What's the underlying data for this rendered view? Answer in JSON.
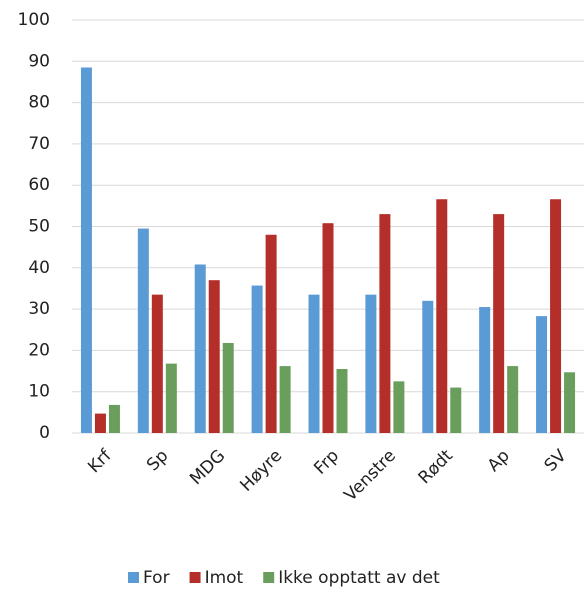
{
  "chart_data": {
    "type": "bar",
    "categories": [
      "Krf",
      "Sp",
      "MDG",
      "Høyre",
      "Frp",
      "Venstre",
      "Rødt",
      "Ap",
      "SV"
    ],
    "series": [
      {
        "name": "For",
        "color": "#5b9bd5",
        "values": [
          88.5,
          49.5,
          40.8,
          35.7,
          33.5,
          33.5,
          32,
          30.5,
          28.3
        ]
      },
      {
        "name": "Imot",
        "color": "#b52f2a",
        "values": [
          4.7,
          33.5,
          37,
          48,
          50.8,
          53,
          56.6,
          53,
          56.6
        ]
      },
      {
        "name": "Ikke opptatt av det",
        "color": "#6a9e5c",
        "values": [
          6.8,
          16.8,
          21.8,
          16.2,
          15.5,
          12.5,
          11,
          16.2,
          14.7
        ]
      }
    ],
    "ylim": [
      0,
      100
    ],
    "yticks": [
      0,
      10,
      20,
      30,
      40,
      50,
      60,
      70,
      80,
      90,
      100
    ],
    "grid": true
  }
}
